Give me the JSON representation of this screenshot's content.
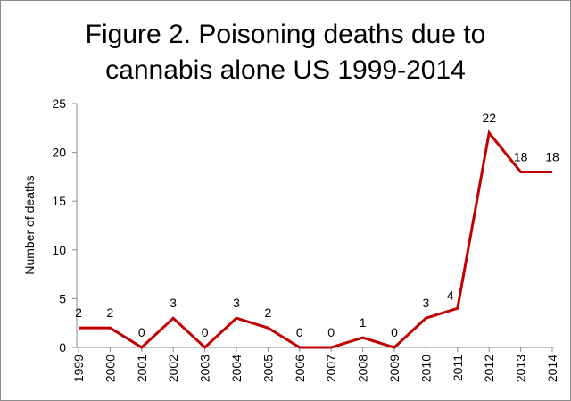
{
  "chart_data": {
    "type": "line",
    "title_line1": "Figure 2. Poisoning deaths due to",
    "title_line2": "cannabis alone US 1999-2014",
    "ylabel": "Number of deaths",
    "xlabel": "",
    "ylim": [
      0,
      25
    ],
    "yticks": [
      0,
      5,
      10,
      15,
      20,
      25
    ],
    "grid": false,
    "legend": "none",
    "categories": [
      "1999",
      "2000",
      "2001",
      "2002",
      "2003",
      "2004",
      "2005",
      "2006",
      "2007",
      "2008",
      "2009",
      "2010",
      "2011",
      "2012",
      "2013",
      "2014"
    ],
    "series": [
      {
        "values": [
          2,
          2,
          0,
          3,
          0,
          3,
          2,
          0,
          0,
          1,
          0,
          3,
          4,
          22,
          18,
          18
        ],
        "color": "#c00000"
      }
    ],
    "data_labels": [
      "2",
      "2",
      "0",
      "3",
      "0",
      "3",
      "2",
      "0",
      "0",
      "1",
      "0",
      "3",
      "4",
      "22",
      "18",
      "18"
    ]
  }
}
